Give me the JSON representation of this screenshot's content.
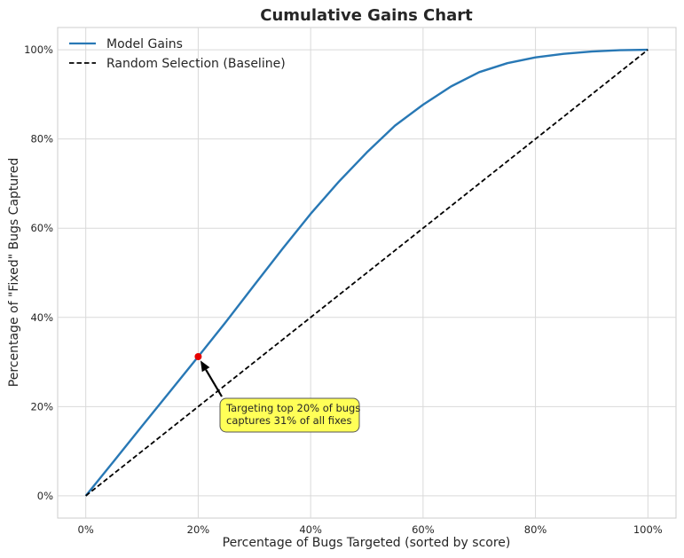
{
  "chart_data": {
    "type": "line",
    "title": "Cumulative Gains Chart",
    "xlabel": "Percentage of Bugs Targeted (sorted by score)",
    "ylabel": "Percentage of \"Fixed\" Bugs Captured",
    "xlim": [
      -5,
      105
    ],
    "ylim": [
      -5,
      105
    ],
    "x_ticks": [
      0,
      20,
      40,
      60,
      80,
      100
    ],
    "y_ticks": [
      0,
      20,
      40,
      60,
      80,
      100
    ],
    "x_tick_labels": [
      "0%",
      "20%",
      "40%",
      "60%",
      "80%",
      "100%"
    ],
    "y_tick_labels": [
      "0%",
      "20%",
      "40%",
      "60%",
      "80%",
      "100%"
    ],
    "grid": true,
    "legend_position": "top-left",
    "series": [
      {
        "name": "Model Gains",
        "color": "#2878b5",
        "style": "solid",
        "points": [
          [
            0,
            0
          ],
          [
            5,
            7.8
          ],
          [
            10,
            15.6
          ],
          [
            15,
            23.4
          ],
          [
            20,
            31.2
          ],
          [
            25,
            39.1
          ],
          [
            30,
            47.3
          ],
          [
            35,
            55.4
          ],
          [
            40,
            63.2
          ],
          [
            45,
            70.4
          ],
          [
            50,
            77
          ],
          [
            55,
            83
          ],
          [
            60,
            87.7
          ],
          [
            65,
            91.8
          ],
          [
            70,
            95
          ],
          [
            75,
            97
          ],
          [
            80,
            98.3
          ],
          [
            85,
            99.1
          ],
          [
            90,
            99.6
          ],
          [
            95,
            99.9
          ],
          [
            100,
            100
          ]
        ]
      },
      {
        "name": "Random Selection (Baseline)",
        "color": "#000000",
        "style": "dashed",
        "points": [
          [
            0,
            0
          ],
          [
            100,
            100
          ]
        ]
      }
    ],
    "highlight_point": {
      "x": 20,
      "y": 31.2,
      "color": "#e60000"
    },
    "annotation": {
      "lines": [
        "Targeting top 20% of bugs",
        "captures 31% of all fixes"
      ],
      "box_color": "#ffff57"
    }
  }
}
